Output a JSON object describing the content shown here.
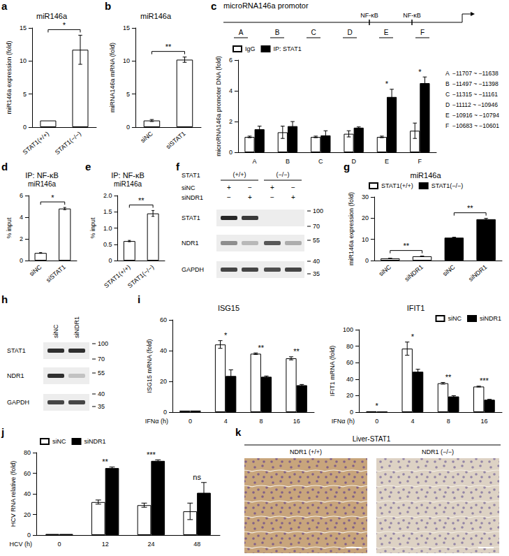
{
  "chart_data": [
    {
      "panel": "a",
      "type": "bar",
      "title": "miR146a",
      "ylabel": "miR146a expression (fold)",
      "categories": [
        "STAT1(+/+)",
        "STAT1(−/−)"
      ],
      "values": [
        1,
        11.7
      ],
      "error": [
        0,
        2.2
      ],
      "color": "#ffffff",
      "ylim": [
        0,
        15
      ],
      "yticks": [
        0,
        5,
        10,
        15
      ],
      "grid": false,
      "brackets": [
        {
          "text": "*",
          "span": [
            0,
            1
          ]
        }
      ]
    },
    {
      "panel": "b",
      "type": "bar",
      "title": "miR146a",
      "ylabel": "miRNA146a mRNA (fold)",
      "categories": [
        "siNC",
        "siSTAT1"
      ],
      "values": [
        1,
        10.2
      ],
      "error": [
        0.15,
        0.4
      ],
      "color": "#ffffff",
      "ylim": [
        0,
        15
      ],
      "yticks": [
        0,
        5,
        10,
        15
      ],
      "grid": false,
      "brackets": [
        {
          "text": "**",
          "span": [
            0,
            1
          ]
        }
      ]
    },
    {
      "panel": "c",
      "type": "bar",
      "title": "microRNA146a promotor",
      "sites": [
        "NF-κB",
        "NF-κB"
      ],
      "ylabel": "microRNA146a promoter DNA (fold)",
      "categories": [
        "A",
        "B",
        "C",
        "D",
        "E",
        "F"
      ],
      "series": [
        {
          "name": "IgG",
          "color": "#ffffff",
          "values": [
            1,
            1.3,
            1.0,
            1.2,
            1.0,
            1.4
          ],
          "error": [
            0.05,
            0.4,
            0.05,
            0.2,
            0.05,
            0.5
          ]
        },
        {
          "name": "IP: STAT1",
          "color": "#000000",
          "values": [
            1.5,
            1.7,
            1.1,
            1.6,
            3.6,
            4.5
          ],
          "error": [
            0.2,
            0.3,
            0.3,
            0.05,
            0.5,
            0.4
          ]
        }
      ],
      "ylim": [
        0,
        6
      ],
      "yticks": [
        0,
        2,
        4,
        6
      ],
      "grid": false,
      "legend": "top-left",
      "annotations": [
        null,
        null,
        null,
        null,
        "*",
        "*"
      ],
      "ranges": [
        "−11707 ~ −11638",
        "−11497 ~ −11398",
        "−11315 ~ −11161",
        "−11112 ~ −10946",
        "−10916 ~ −10794",
        "−10683 ~ −10601"
      ]
    },
    {
      "panel": "d",
      "type": "bar",
      "title": "IP: NF-κB",
      "subtitle": "miR146a",
      "ylabel": "% input",
      "categories": [
        "siNC",
        "siSTAT1"
      ],
      "values": [
        0.7,
        4.8
      ],
      "error": [
        0.03,
        0.1
      ],
      "color": "#ffffff",
      "ylim": [
        0,
        6
      ],
      "yticks": [
        0,
        2,
        4,
        6
      ],
      "grid": false,
      "brackets": [
        {
          "text": "*",
          "span": [
            0,
            1
          ]
        }
      ]
    },
    {
      "panel": "e",
      "type": "bar",
      "title": "IP: NF-κB",
      "subtitle": "miR146a",
      "ylabel": "% input",
      "categories": [
        "STAT1(+/+)",
        "STAT1(−/−)"
      ],
      "values": [
        0.6,
        1.45
      ],
      "error": [
        0.02,
        0.09
      ],
      "color": "#ffffff",
      "ylim": [
        0,
        2
      ],
      "yticks": [
        0,
        0.5,
        {
          "value": 1,
          "label": "1.0"
        },
        1.5,
        {
          "value": 2,
          "label": "2.0"
        }
      ],
      "grid": false,
      "brackets": [
        {
          "text": "**",
          "span": [
            0,
            1
          ]
        }
      ]
    },
    {
      "panel": "g",
      "type": "bar",
      "title": "miR146a",
      "ylabel": "miR146a expression (fold)",
      "categories": [
        "siNC",
        "siNDR1",
        "siNC",
        "siNDR1"
      ],
      "series": [
        {
          "name": "STAT1(+/+)",
          "color": "#ffffff",
          "values": [
            1,
            2.0,
            null,
            null
          ],
          "error": [
            0.05,
            0.1,
            null,
            null
          ]
        },
        {
          "name": "STAT1(−/−)",
          "color": "#000000",
          "values": [
            null,
            null,
            10.8,
            19.5
          ],
          "error": [
            null,
            null,
            0.2,
            0.4
          ]
        }
      ],
      "ylim": [
        0,
        30
      ],
      "yticks": [
        0,
        10,
        20,
        30
      ],
      "grid": false,
      "legend": "top-left",
      "brackets": [
        {
          "text": "**",
          "span": [
            0,
            1
          ]
        },
        {
          "text": "**",
          "span": [
            2,
            3
          ]
        }
      ]
    },
    {
      "panel": "i",
      "type": "bar",
      "title": "ISG15",
      "ylabel": "ISG15 mRNA (fold)",
      "xlabel": "IFNα (h)",
      "categories": [
        "0",
        "4",
        "8",
        "16"
      ],
      "series": [
        {
          "name": "siNC",
          "color": "#ffffff",
          "values": [
            1,
            44,
            38,
            35
          ],
          "error": [
            0,
            2.5,
            0.5,
            1
          ]
        },
        {
          "name": "siNDR1",
          "color": "#000000",
          "values": [
            1,
            23.5,
            23,
            17.5
          ],
          "error": [
            0,
            4,
            0.5,
            0.5
          ]
        }
      ],
      "ylim": [
        0,
        60
      ],
      "yticks": [
        0,
        20,
        40,
        60
      ],
      "grid": false,
      "annotations": [
        null,
        "*",
        "**",
        "**"
      ]
    },
    {
      "type": "bar",
      "title": "IFIT1",
      "ylabel": "IFIT1 mRNA (fold)",
      "xlabel": "IFNα (h)",
      "categories": [
        "0",
        "4",
        "8",
        "16"
      ],
      "series": [
        {
          "name": "siNC",
          "color": "#ffffff",
          "values": [
            1,
            77,
            35,
            31
          ],
          "error": [
            0,
            8,
            1,
            0.5
          ]
        },
        {
          "name": "siNDR1",
          "color": "#000000",
          "values": [
            0.5,
            49,
            19,
            15
          ],
          "error": [
            0,
            3,
            1,
            0.5
          ]
        }
      ],
      "ylim": [
        0,
        100
      ],
      "yticks": [
        0,
        20,
        40,
        60,
        80,
        100
      ],
      "grid": false,
      "legend": "top-right",
      "annotations": [
        "*",
        "*",
        "**",
        "***"
      ]
    },
    {
      "panel": "j",
      "type": "bar",
      "ylabel": "HCV RNA relative (fold)",
      "xlabel": "HCV (h)",
      "categories": [
        "0",
        "12",
        "24",
        "48"
      ],
      "series": [
        {
          "name": "siNC",
          "color": "#ffffff",
          "values": [
            1,
            32,
            29,
            23
          ],
          "error": [
            0,
            2,
            2,
            8
          ]
        },
        {
          "name": "siNDR1",
          "color": "#000000",
          "values": [
            1,
            65,
            72,
            41
          ],
          "error": [
            0,
            1,
            1,
            10
          ]
        }
      ],
      "ylim": [
        0,
        80
      ],
      "yticks": [
        0,
        20,
        40,
        60,
        80
      ],
      "grid": false,
      "legend": "top-left",
      "annotations": [
        null,
        "**",
        "***",
        "ns"
      ]
    }
  ],
  "blots": [
    {
      "panel": "f",
      "group_label": "STAT1",
      "groups": [
        "(+/+)",
        "(−/−)"
      ],
      "conditions": [
        {
          "label": "siNC",
          "lanes": [
            "+",
            "−",
            "+",
            "−"
          ]
        },
        {
          "label": "siNDR1",
          "lanes": [
            "−",
            "+",
            "−",
            "+"
          ]
        }
      ],
      "rows": [
        "STAT1",
        "NDR1",
        "GAPDH"
      ],
      "markers": [
        100,
        70,
        55,
        40,
        35
      ]
    },
    {
      "panel": "h",
      "lanes": [
        "siNC",
        "siNDR1"
      ],
      "rows": [
        "STAT1",
        "NDR1",
        "GAPDH"
      ],
      "markers": [
        100,
        70,
        55,
        40,
        35
      ]
    }
  ],
  "image": {
    "panel": "k",
    "title": "Liver-STAT1",
    "images": [
      "NDR1 (+/+)",
      "NDR1 (−/−)"
    ]
  }
}
